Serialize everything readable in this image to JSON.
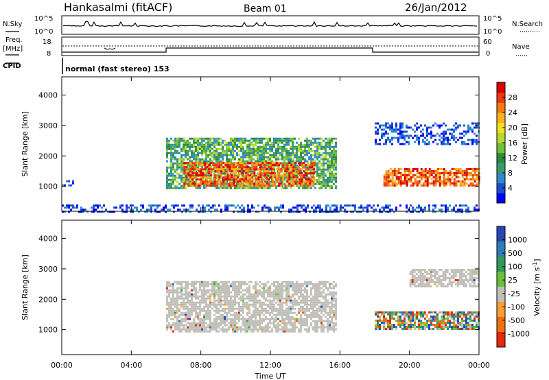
{
  "header": {
    "station": "Hankasalmi (fitACF)",
    "beam": "Beam 01",
    "date": "26/Jan/2012"
  },
  "nsky_panel": {
    "left_label": "N.Sky",
    "right_label": "N.Search",
    "left_ticks": [
      "10^5",
      "10^0"
    ],
    "right_ticks": [
      "10^5",
      "10^0"
    ]
  },
  "freq_panel": {
    "left_label_line1": "Freq.",
    "left_label_line2": "[MHz]",
    "right_label": "Nave",
    "left_ticks": [
      "18",
      "8"
    ],
    "right_ticks": [
      "60",
      "0"
    ]
  },
  "cpid": {
    "label": "CPID",
    "value": "normal (fast stereo) 153"
  },
  "chart_data": [
    {
      "type": "heatmap",
      "title": "",
      "xlabel": "Time UT",
      "ylabel": "Slant Range [km]",
      "x_ticks": [
        "00:00",
        "04:00",
        "08:00",
        "12:00",
        "16:00",
        "20:00",
        "00:00"
      ],
      "y_ticks": [
        "1000",
        "2000",
        "3000",
        "4000"
      ],
      "xlim_hours": [
        0,
        24
      ],
      "ylim_km": [
        180,
        4600
      ],
      "colorbar": {
        "label": "Power [dB]",
        "ticks": [
          "4",
          "8",
          "12",
          "16",
          "20",
          "24",
          "28"
        ],
        "range": [
          0,
          30
        ],
        "colors": [
          "#0000ff",
          "#1c4fd0",
          "#2d8cc8",
          "#3c9a6a",
          "#2e8b3e",
          "#6fbf3a",
          "#b8d830",
          "#f4e21e",
          "#f9b21c",
          "#f67a10",
          "#ee3a0a",
          "#d90000"
        ]
      },
      "echo_regions": [
        {
          "t_start": 0.0,
          "t_end": 0.6,
          "range_min": 1050,
          "range_max": 1200,
          "level": "low"
        },
        {
          "t_start": 0.0,
          "t_end": 24.0,
          "range_min": 180,
          "range_max": 400,
          "level": "low"
        },
        {
          "t_start": 6.0,
          "t_end": 15.8,
          "range_min": 950,
          "range_max": 2600,
          "level": "mid"
        },
        {
          "t_start": 7.0,
          "t_end": 14.5,
          "range_min": 1000,
          "range_max": 1800,
          "level": "high"
        },
        {
          "t_start": 18.5,
          "t_end": 24.0,
          "range_min": 1000,
          "range_max": 1600,
          "level": "high"
        },
        {
          "t_start": 18.0,
          "t_end": 24.0,
          "range_min": 2400,
          "range_max": 3100,
          "level": "low"
        }
      ]
    },
    {
      "type": "heatmap",
      "title": "",
      "xlabel": "Time UT",
      "ylabel": "Slant Range [km]",
      "x_ticks": [
        "00:00",
        "04:00",
        "08:00",
        "12:00",
        "16:00",
        "20:00",
        "00:00"
      ],
      "y_ticks": [
        "1000",
        "2000",
        "3000",
        "4000"
      ],
      "xlim_hours": [
        0,
        24
      ],
      "ylim_km": [
        180,
        4600
      ],
      "colorbar": {
        "label": "Velocity [m s^-1]",
        "ticks": [
          "1000",
          "500",
          "100",
          "25",
          "-25",
          "-100",
          "-500",
          "-1000"
        ],
        "colors": [
          "#2846b4",
          "#2e7db8",
          "#2f9a5a",
          "#6cc03a",
          "#c0c0b8",
          "#f9a030",
          "#f07010",
          "#e8280a"
        ]
      },
      "echo_regions": [
        {
          "t_start": 6.0,
          "t_end": 15.8,
          "range_min": 950,
          "range_max": 2600,
          "level": "ground"
        },
        {
          "t_start": 18.0,
          "t_end": 24.0,
          "range_min": 1000,
          "range_max": 1600,
          "level": "mixed"
        },
        {
          "t_start": 20.0,
          "t_end": 24.0,
          "range_min": 2400,
          "range_max": 3000,
          "level": "ground"
        }
      ]
    }
  ]
}
